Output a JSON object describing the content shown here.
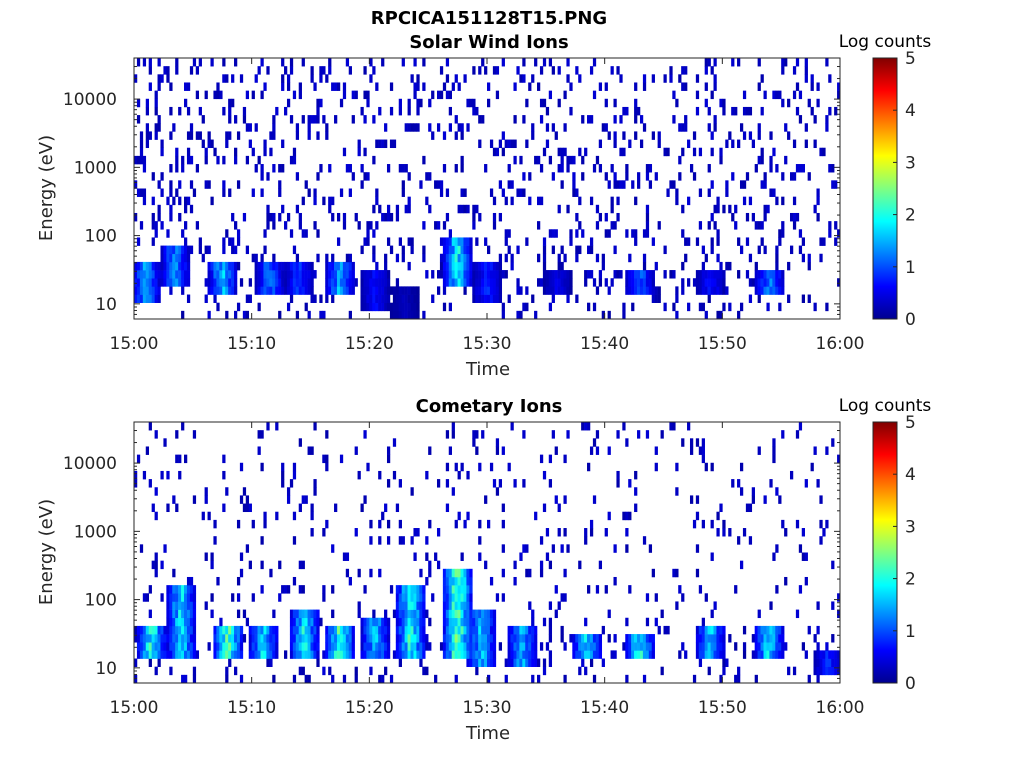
{
  "figure": {
    "title": "RPCICA151128T15.PNG"
  },
  "colormap": {
    "name": "jet",
    "stops": [
      "#00008f",
      "#0000ff",
      "#0080ff",
      "#00ffff",
      "#80ff80",
      "#ffff00",
      "#ff8000",
      "#ff0000",
      "#800000"
    ]
  },
  "chart_data": [
    {
      "type": "heatmap",
      "title": "Solar Wind Ions",
      "xlabel": "Time",
      "ylabel": "Energy (eV)",
      "y_scale": "log",
      "xlim": [
        "15:00",
        "16:00"
      ],
      "ylim": [
        6,
        40000
      ],
      "x_ticks": [
        "15:00",
        "15:10",
        "15:20",
        "15:30",
        "15:40",
        "15:50",
        "16:00"
      ],
      "y_ticks": [
        {
          "value": 10,
          "label": "10"
        },
        {
          "value": 100,
          "label": "100"
        },
        {
          "value": 1000,
          "label": "1000"
        },
        {
          "value": 10000,
          "label": "10000"
        }
      ],
      "colorbar": {
        "label": "Log counts",
        "range": [
          0,
          5
        ],
        "ticks": [
          "0",
          "1",
          "2",
          "3",
          "4",
          "5"
        ]
      },
      "features": [
        {
          "time": "15:01",
          "energy_range": [
            10,
            40
          ],
          "log_counts": 1.8
        },
        {
          "time": "15:03.5",
          "energy_range": [
            20,
            80
          ],
          "log_counts": 1.6
        },
        {
          "time": "15:07.5",
          "energy_range": [
            15,
            40
          ],
          "log_counts": 2.0
        },
        {
          "time": "15:11.5",
          "energy_range": [
            15,
            40
          ],
          "log_counts": 1.5
        },
        {
          "time": "15:14",
          "energy_range": [
            15,
            40
          ],
          "log_counts": 1.2
        },
        {
          "time": "15:17.5",
          "energy_range": [
            15,
            40
          ],
          "log_counts": 1.9
        },
        {
          "time": "15:20.5",
          "energy_range": [
            8,
            30
          ],
          "log_counts": 0.8
        },
        {
          "time": "15:23",
          "energy_range": [
            6,
            20
          ],
          "log_counts": 0.3
        },
        {
          "time": "15:27.5",
          "energy_range": [
            20,
            100
          ],
          "log_counts": 2.4
        },
        {
          "time": "15:30",
          "energy_range": [
            10,
            40
          ],
          "log_counts": 1.0
        },
        {
          "time": "15:36",
          "energy_range": [
            15,
            30
          ],
          "log_counts": 0.6
        },
        {
          "time": "15:43",
          "energy_range": [
            15,
            30
          ],
          "log_counts": 1.4
        },
        {
          "time": "15:49",
          "energy_range": [
            15,
            30
          ],
          "log_counts": 0.9
        },
        {
          "time": "15:54",
          "energy_range": [
            15,
            30
          ],
          "log_counts": 1.6
        }
      ],
      "background": {
        "energy_range": [
          40,
          40000
        ],
        "log_counts": 0.1,
        "description_level": "sparse single counts"
      }
    },
    {
      "type": "heatmap",
      "title": "Cometary Ions",
      "xlabel": "Time",
      "ylabel": "Energy (eV)",
      "y_scale": "log",
      "xlim": [
        "15:00",
        "16:00"
      ],
      "ylim": [
        6,
        40000
      ],
      "x_ticks": [
        "15:00",
        "15:10",
        "15:20",
        "15:30",
        "15:40",
        "15:50",
        "16:00"
      ],
      "y_ticks": [
        {
          "value": 10,
          "label": "10"
        },
        {
          "value": 100,
          "label": "100"
        },
        {
          "value": 1000,
          "label": "1000"
        },
        {
          "value": 10000,
          "label": "10000"
        }
      ],
      "colorbar": {
        "label": "Log counts",
        "range": [
          0,
          5
        ],
        "ticks": [
          "0",
          "1",
          "2",
          "3",
          "4",
          "5"
        ]
      },
      "features": [
        {
          "time": "15:01.5",
          "energy_range": [
            15,
            40
          ],
          "log_counts": 2.6
        },
        {
          "time": "15:04",
          "energy_range": [
            15,
            150
          ],
          "log_counts": 2.3
        },
        {
          "time": "15:08",
          "energy_range": [
            15,
            40
          ],
          "log_counts": 2.9
        },
        {
          "time": "15:11",
          "energy_range": [
            15,
            40
          ],
          "log_counts": 2.3
        },
        {
          "time": "15:14.5",
          "energy_range": [
            15,
            80
          ],
          "log_counts": 2.4
        },
        {
          "time": "15:17.5",
          "energy_range": [
            15,
            40
          ],
          "log_counts": 2.8
        },
        {
          "time": "15:20.5",
          "energy_range": [
            12,
            50
          ],
          "log_counts": 2.0
        },
        {
          "time": "15:23.5",
          "energy_range": [
            15,
            150
          ],
          "log_counts": 2.6
        },
        {
          "time": "15:27.5",
          "energy_range": [
            15,
            250
          ],
          "log_counts": 3.0
        },
        {
          "time": "15:29.5",
          "energy_range": [
            10,
            80
          ],
          "log_counts": 2.0
        },
        {
          "time": "15:33",
          "energy_range": [
            10,
            40
          ],
          "log_counts": 2.0
        },
        {
          "time": "15:38.5",
          "energy_range": [
            15,
            30
          ],
          "log_counts": 2.2
        },
        {
          "time": "15:43",
          "energy_range": [
            15,
            30
          ],
          "log_counts": 2.5
        },
        {
          "time": "15:49",
          "energy_range": [
            15,
            40
          ],
          "log_counts": 2.1
        },
        {
          "time": "15:54",
          "energy_range": [
            15,
            40
          ],
          "log_counts": 2.3
        },
        {
          "time": "15:59",
          "energy_range": [
            8,
            20
          ],
          "log_counts": 1.0
        }
      ],
      "background": {
        "energy_range": [
          40,
          40000
        ],
        "log_counts": 0.05,
        "description_level": "rare single counts"
      }
    }
  ]
}
